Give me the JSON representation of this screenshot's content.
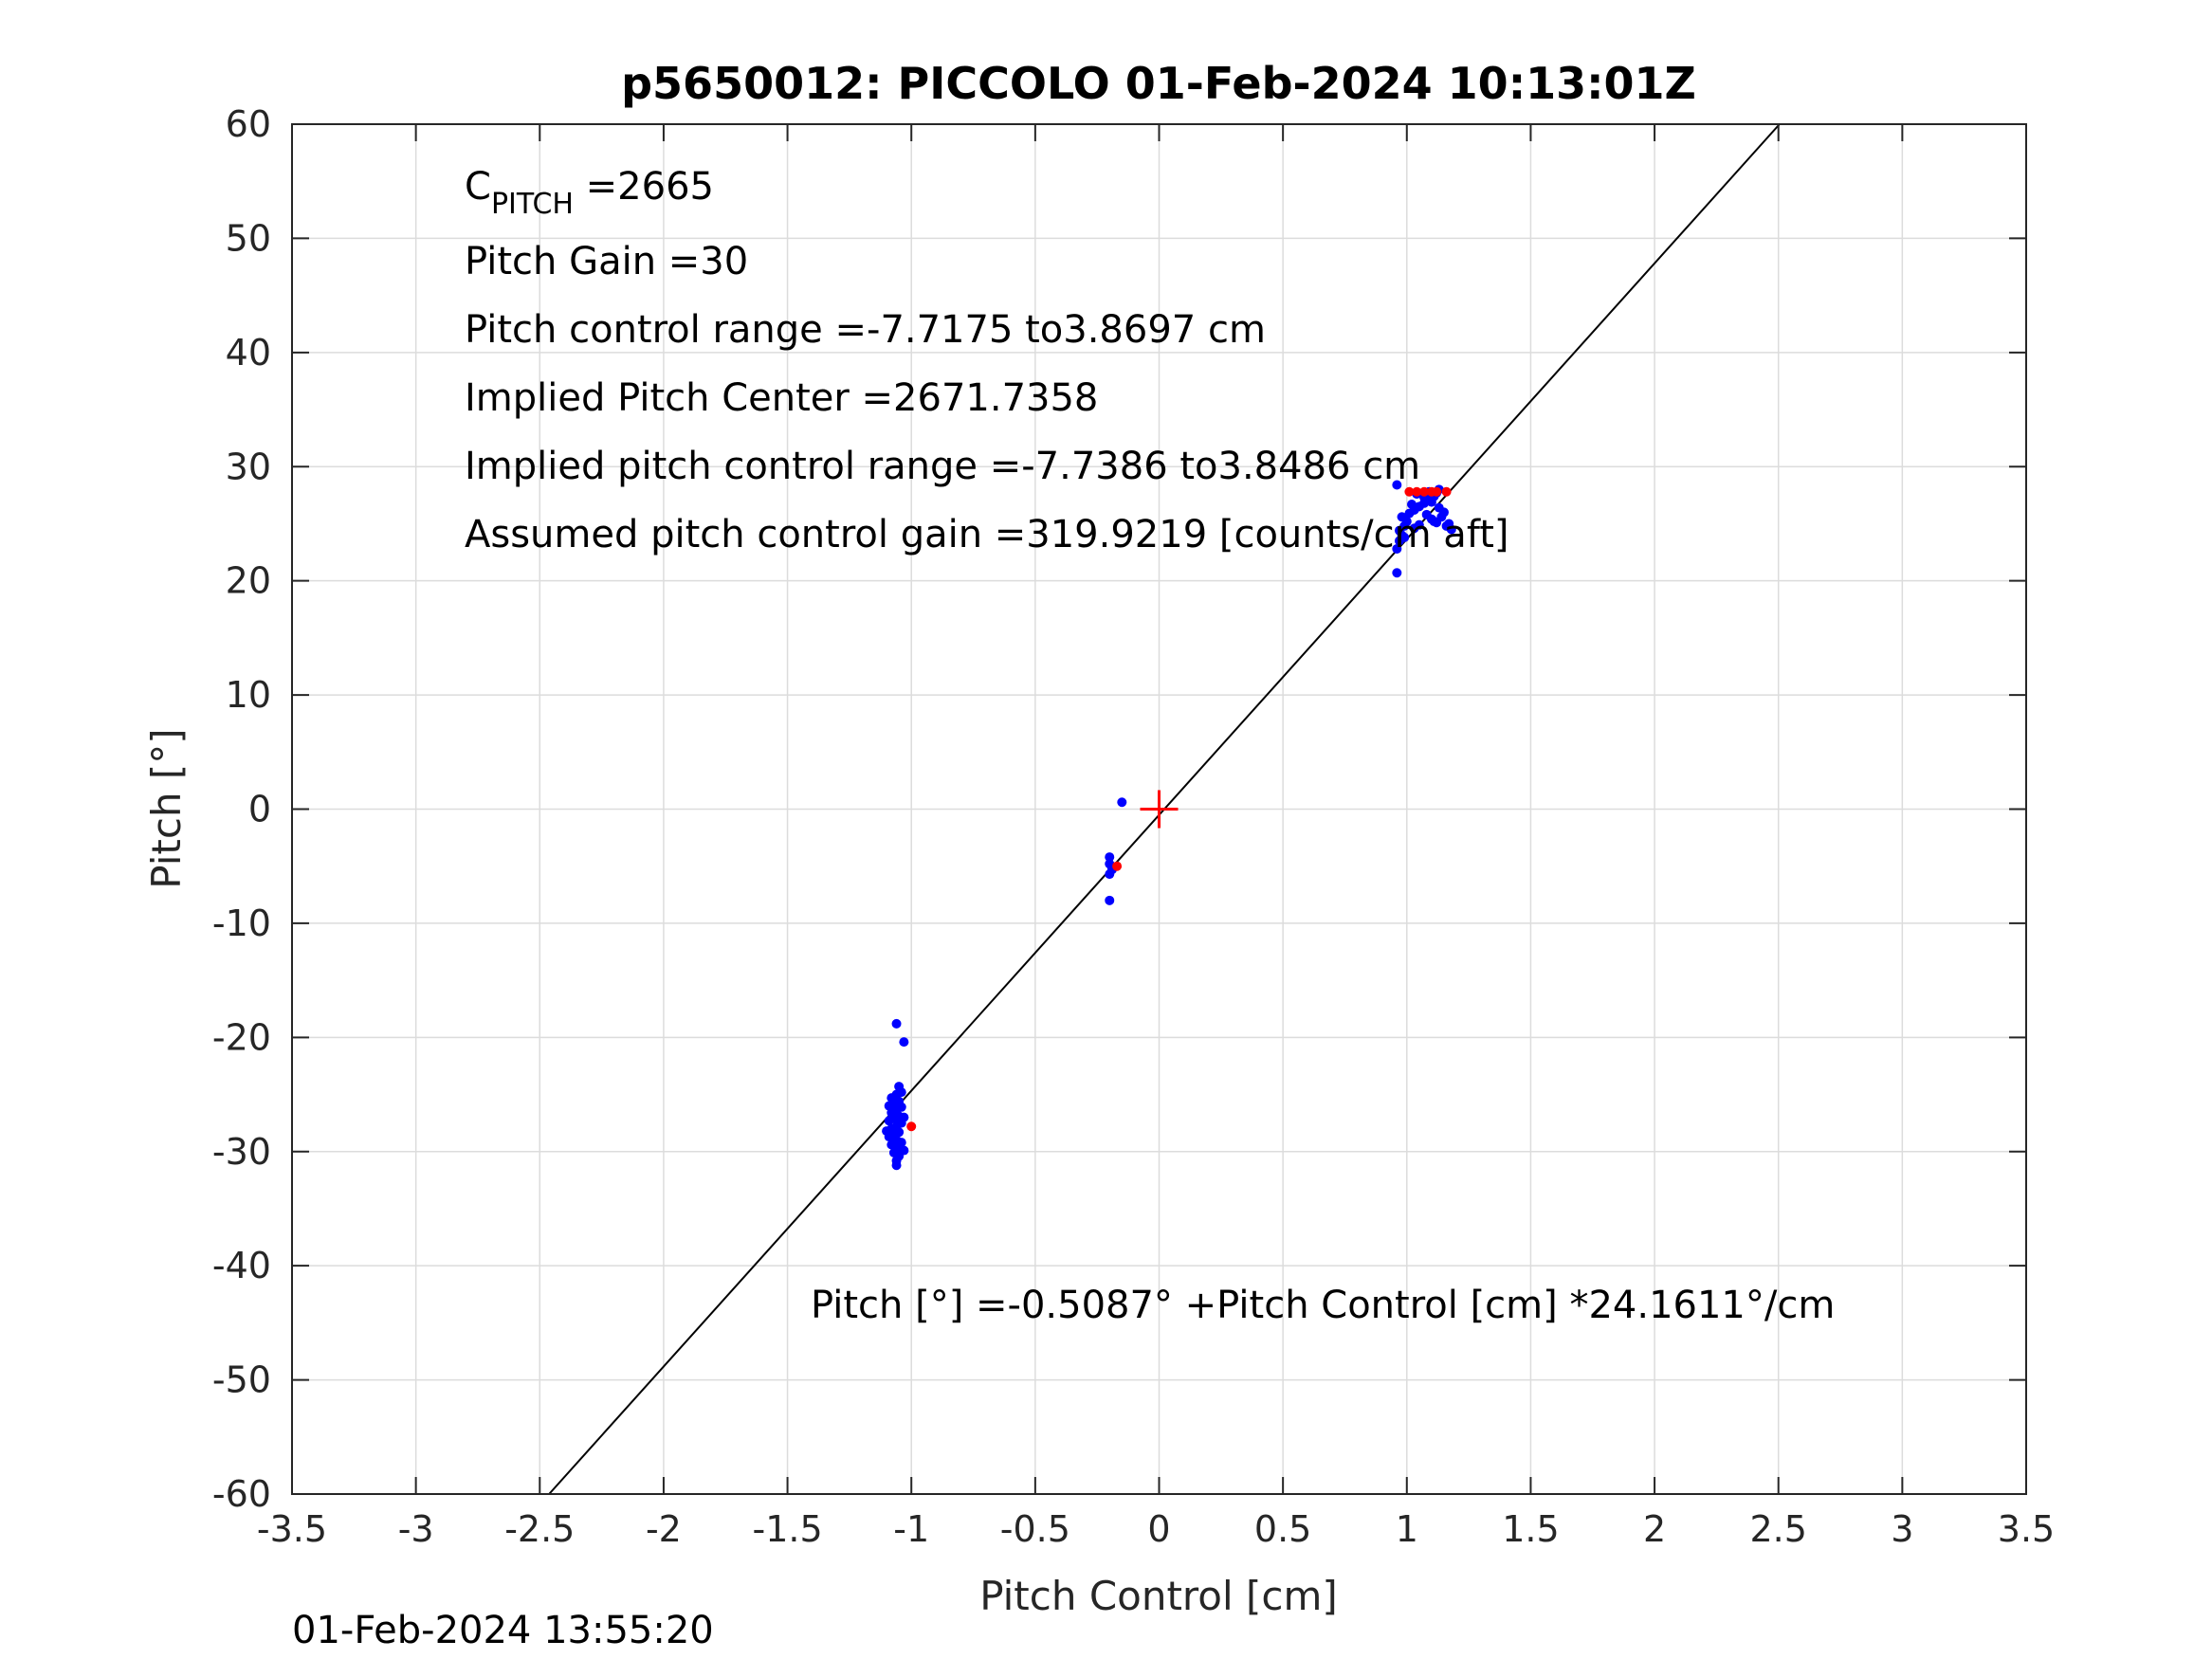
{
  "chart_data": {
    "type": "scatter",
    "title": "p5650012: PICCOLO 01-Feb-2024 10:13:01Z",
    "xlabel": "Pitch Control [cm]",
    "ylabel": "Pitch [°]",
    "xlim": [
      -3.5,
      3.5
    ],
    "ylim": [
      -60,
      60
    ],
    "xticks": [
      -3.5,
      -3,
      -2.5,
      -2,
      -1.5,
      -1,
      -0.5,
      0,
      0.5,
      1,
      1.5,
      2,
      2.5,
      3,
      3.5
    ],
    "xtick_labels": [
      "-3.5",
      "-3",
      "-2.5",
      "-2",
      "-1.5",
      "-1",
      "-0.5",
      "0",
      "0.5",
      "1",
      "1.5",
      "2",
      "2.5",
      "3",
      "3.5"
    ],
    "yticks": [
      -60,
      -50,
      -40,
      -30,
      -20,
      -10,
      0,
      10,
      20,
      30,
      40,
      50,
      60
    ],
    "ytick_labels": [
      "-60",
      "-50",
      "-40",
      "-30",
      "-20",
      "-10",
      "0",
      "10",
      "20",
      "30",
      "40",
      "50",
      "60"
    ],
    "grid": true,
    "fit_line": {
      "intercept": -0.5087,
      "slope": 24.1611,
      "color": "#000000"
    },
    "center_marker": {
      "x": 0,
      "y": 0,
      "color": "#ff0000"
    },
    "series": [
      {
        "color": "#0000ff",
        "points": [
          [
            -1.06,
            -18.8
          ],
          [
            -1.03,
            -20.4
          ],
          [
            -1.05,
            -24.3
          ],
          [
            -1.04,
            -24.8
          ],
          [
            -1.06,
            -25.0
          ],
          [
            -1.08,
            -25.3
          ],
          [
            -1.05,
            -25.6
          ],
          [
            -1.07,
            -25.9
          ],
          [
            -1.04,
            -26.1
          ],
          [
            -1.06,
            -26.4
          ],
          [
            -1.08,
            -26.6
          ],
          [
            -1.05,
            -26.9
          ],
          [
            -1.07,
            -27.1
          ],
          [
            -1.09,
            -27.3
          ],
          [
            -1.04,
            -27.5
          ],
          [
            -1.06,
            -27.8
          ],
          [
            -1.08,
            -28.0
          ],
          [
            -1.05,
            -28.3
          ],
          [
            -1.07,
            -28.5
          ],
          [
            -1.09,
            -28.7
          ],
          [
            -1.06,
            -29.0
          ],
          [
            -1.04,
            -29.2
          ],
          [
            -1.08,
            -29.4
          ],
          [
            -1.06,
            -29.7
          ],
          [
            -1.03,
            -29.9
          ],
          [
            -1.07,
            -30.1
          ],
          [
            -1.05,
            -30.4
          ],
          [
            -1.06,
            -30.8
          ],
          [
            -1.06,
            -31.2
          ],
          [
            -1.09,
            -26.0
          ],
          [
            -1.03,
            -27.0
          ],
          [
            -1.1,
            -28.2
          ],
          [
            -0.2,
            -4.2
          ],
          [
            -0.2,
            -4.8
          ],
          [
            -0.19,
            -5.3
          ],
          [
            -0.2,
            -5.7
          ],
          [
            -0.2,
            -8.0
          ],
          [
            -0.15,
            0.6
          ],
          [
            0.96,
            28.4
          ],
          [
            0.96,
            20.7
          ],
          [
            0.96,
            22.8
          ],
          [
            0.97,
            23.5
          ],
          [
            0.98,
            24.0
          ],
          [
            0.97,
            24.4
          ],
          [
            0.99,
            24.8
          ],
          [
            1.0,
            25.2
          ],
          [
            0.98,
            25.6
          ],
          [
            1.01,
            25.9
          ],
          [
            1.03,
            26.2
          ],
          [
            1.05,
            26.5
          ],
          [
            1.07,
            26.8
          ],
          [
            1.09,
            27.1
          ],
          [
            1.11,
            27.4
          ],
          [
            1.12,
            27.7
          ],
          [
            1.13,
            28.0
          ],
          [
            1.1,
            26.9
          ],
          [
            1.08,
            25.8
          ],
          [
            1.1,
            25.4
          ],
          [
            1.12,
            25.1
          ],
          [
            1.14,
            25.6
          ],
          [
            1.15,
            26.0
          ],
          [
            1.16,
            24.8
          ],
          [
            1.18,
            24.5
          ],
          [
            1.17,
            25.0
          ],
          [
            1.05,
            24.9
          ],
          [
            1.03,
            24.6
          ],
          [
            1.07,
            27.3
          ],
          [
            1.04,
            27.6
          ],
          [
            1.02,
            26.7
          ],
          [
            1.13,
            26.4
          ],
          [
            1.11,
            25.2
          ],
          [
            0.99,
            23.8
          ],
          [
            1.09,
            27.8
          ]
        ]
      },
      {
        "color": "#ff0000",
        "points": [
          [
            -1.0,
            -27.8
          ],
          [
            -0.17,
            -5.0
          ],
          [
            1.01,
            27.8
          ],
          [
            1.04,
            27.8
          ],
          [
            1.07,
            27.8
          ],
          [
            1.1,
            27.8
          ],
          [
            1.12,
            27.8
          ],
          [
            1.16,
            27.8
          ]
        ]
      }
    ],
    "annotations": [
      {
        "main": "C",
        "sub": "PITCH",
        "rest": " =2665"
      },
      {
        "text": "Pitch Gain =30"
      },
      {
        "text": "Pitch control range =-7.7175 to3.8697 cm"
      },
      {
        "text": "Implied Pitch Center =2671.7358"
      },
      {
        "text": "Implied pitch control range =-7.7386 to3.8486 cm"
      },
      {
        "text": "Assumed pitch control gain =319.9219 [counts/cm aft]"
      }
    ],
    "equation": "Pitch [°] =-0.5087° +Pitch Control [cm] *24.1611°/cm"
  },
  "footer_timestamp": "01-Feb-2024 13:55:20"
}
